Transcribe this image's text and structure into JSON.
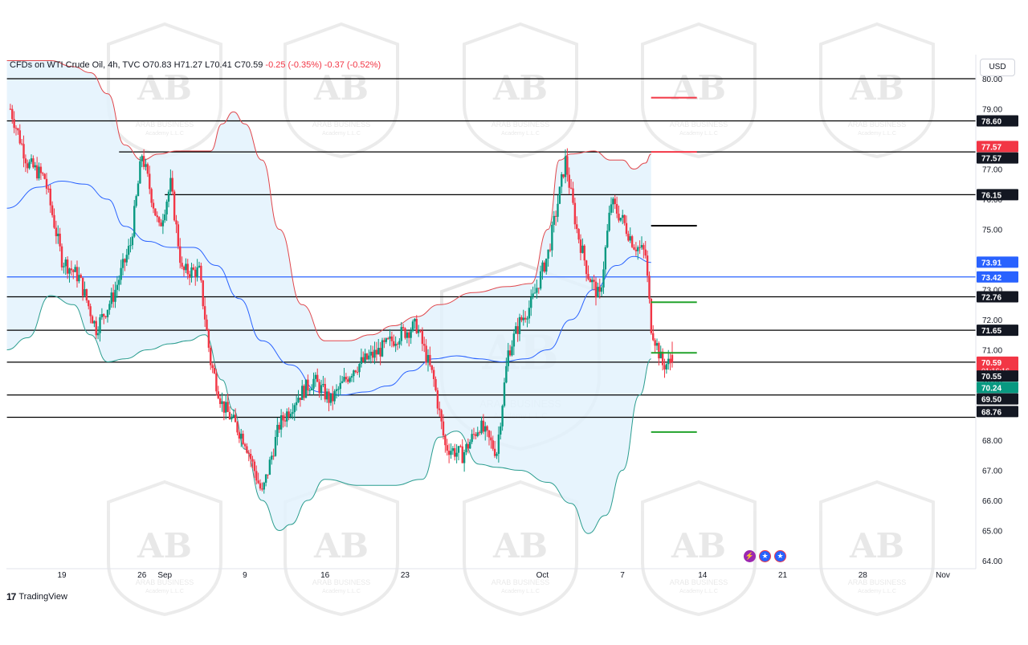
{
  "legend": {
    "symbol": "CFDs on WTI Crude Oil, 4h, TVC",
    "open": "O70.83",
    "high": "H71.27",
    "low": "L70.41",
    "close": "C70.59",
    "change": "-0.25 (-0.35%)",
    "change2": "-0.37 (-0.52%)"
  },
  "currency_button": "USD",
  "branding": {
    "logo": "17",
    "name": "TradingView"
  },
  "watermark": {
    "text": "ARAB BUSINESS",
    "sub": "Academy L.L.C",
    "monogram": "AB"
  },
  "events": [
    {
      "icon": "flash-icon",
      "glyph": "⚡"
    },
    {
      "icon": "us-flag-icon",
      "glyph": "★"
    },
    {
      "icon": "us-flag-icon",
      "glyph": "★"
    }
  ],
  "colors": {
    "up": "#089981",
    "down": "#f23645",
    "bb_upper": "#e0474c",
    "bb_lower": "#2a9d8f",
    "bb_basis": "#2962ff",
    "bb_fill": "#e3f2fd",
    "level_line": "#000000",
    "tag_red": "#f23645",
    "tag_blue": "#2962ff",
    "tag_dark": "#131722",
    "tag_green": "#089981"
  },
  "chart_data": {
    "type": "candlestick",
    "instrument": "CFDs on WTI Crude Oil",
    "timeframe": "4h",
    "ylim": [
      63.7,
      80.4
    ],
    "y_ticks": [
      "80.00",
      "79.00",
      "77.00",
      "76.00",
      "75.00",
      "74.00",
      "73.00",
      "72.00",
      "71.00",
      "70.00",
      "68.00",
      "67.00",
      "66.00",
      "65.00",
      "64.00"
    ],
    "x_range_days": [
      -17.8,
      21.5
    ],
    "x_ticks": [
      {
        "d": -13,
        "label": "19"
      },
      {
        "d": -6,
        "label": "26"
      },
      {
        "d": -4,
        "label": "Sep"
      },
      {
        "d": 3,
        "label": "9"
      },
      {
        "d": 10,
        "label": "16"
      },
      {
        "d": 17,
        "label": "23"
      },
      {
        "d": 29,
        "label": "Oct"
      },
      {
        "d": 36,
        "label": "7"
      },
      {
        "d": 43,
        "label": "14"
      },
      {
        "d": 50,
        "label": "21"
      },
      {
        "d": 57,
        "label": "28"
      },
      {
        "d": 64,
        "label": "Nov"
      }
    ],
    "key_points": [
      {
        "d": -17.5,
        "p": 79.0
      },
      {
        "d": -16.0,
        "p": 77.2
      },
      {
        "d": -14.5,
        "p": 76.7
      },
      {
        "d": -13.0,
        "p": 74.0
      },
      {
        "d": -11.5,
        "p": 73.4
      },
      {
        "d": -10.0,
        "p": 71.7
      },
      {
        "d": -8.5,
        "p": 72.8
      },
      {
        "d": -7.0,
        "p": 74.5
      },
      {
        "d": -6.0,
        "p": 77.5
      },
      {
        "d": -4.5,
        "p": 75.0
      },
      {
        "d": -3.5,
        "p": 76.5
      },
      {
        "d": -2.5,
        "p": 73.6
      },
      {
        "d": -1.0,
        "p": 73.6
      },
      {
        "d": 0.0,
        "p": 70.6
      },
      {
        "d": 1.0,
        "p": 69.2
      },
      {
        "d": 2.0,
        "p": 68.6
      },
      {
        "d": 3.0,
        "p": 68.0
      },
      {
        "d": 4.5,
        "p": 66.2
      },
      {
        "d": 6.0,
        "p": 68.5
      },
      {
        "d": 7.5,
        "p": 69.4
      },
      {
        "d": 9.0,
        "p": 70.0
      },
      {
        "d": 10.5,
        "p": 69.3
      },
      {
        "d": 12.5,
        "p": 70.4
      },
      {
        "d": 14.5,
        "p": 70.9
      },
      {
        "d": 16.5,
        "p": 71.5
      },
      {
        "d": 18.0,
        "p": 71.8
      },
      {
        "d": 19.5,
        "p": 70.0
      },
      {
        "d": 20.5,
        "p": 67.8
      },
      {
        "d": 22.0,
        "p": 67.5
      },
      {
        "d": 23.5,
        "p": 68.5
      },
      {
        "d": 25.0,
        "p": 67.6
      },
      {
        "d": 26.0,
        "p": 70.9
      },
      {
        "d": 27.0,
        "p": 71.9
      },
      {
        "d": 28.0,
        "p": 72.5
      },
      {
        "d": 29.5,
        "p": 74.2
      },
      {
        "d": 30.5,
        "p": 76.2
      },
      {
        "d": 31.0,
        "p": 77.3
      },
      {
        "d": 32.0,
        "p": 75.0
      },
      {
        "d": 33.0,
        "p": 73.5
      },
      {
        "d": 34.0,
        "p": 72.7
      },
      {
        "d": 35.0,
        "p": 75.9
      },
      {
        "d": 36.0,
        "p": 75.3
      },
      {
        "d": 37.0,
        "p": 74.5
      },
      {
        "d": 38.0,
        "p": 74.2
      },
      {
        "d": 38.5,
        "p": 71.8
      },
      {
        "d": 39.5,
        "p": 70.5
      },
      {
        "d": 40.5,
        "p": 70.6
      }
    ],
    "last_candle": {
      "open": 70.83,
      "high": 71.27,
      "low": 70.41,
      "close": 70.59
    },
    "bollinger": {
      "upper": [
        [
          -17.8,
          80.6
        ],
        [
          -14.0,
          80.6
        ],
        [
          -12.0,
          80.4
        ],
        [
          -10.5,
          80.2
        ],
        [
          -9.0,
          79.5
        ],
        [
          -7.5,
          77.8
        ],
        [
          -6.0,
          77.3
        ],
        [
          -4.5,
          77.5
        ],
        [
          -3.0,
          77.6
        ],
        [
          -1.5,
          77.6
        ],
        [
          0.0,
          77.6
        ],
        [
          1.0,
          78.5
        ],
        [
          2.0,
          78.9
        ],
        [
          3.0,
          78.5
        ],
        [
          4.5,
          77.3
        ],
        [
          6.0,
          75.0
        ],
        [
          8.0,
          72.5
        ],
        [
          10.0,
          71.3
        ],
        [
          12.0,
          71.3
        ],
        [
          14.0,
          71.5
        ],
        [
          16.0,
          71.8
        ],
        [
          18.0,
          72.1
        ],
        [
          20.0,
          72.5
        ],
        [
          23.0,
          72.9
        ],
        [
          26.0,
          73.1
        ],
        [
          28.0,
          73.2
        ],
        [
          29.5,
          75.0
        ],
        [
          30.5,
          77.3
        ],
        [
          31.5,
          77.5
        ],
        [
          33.5,
          77.6
        ],
        [
          35.0,
          77.3
        ],
        [
          36.0,
          77.3
        ],
        [
          37.0,
          77.0
        ],
        [
          38.0,
          77.2
        ],
        [
          38.5,
          77.5
        ]
      ],
      "basis": [
        [
          -17.8,
          75.7
        ],
        [
          -15.0,
          76.4
        ],
        [
          -13.0,
          76.6
        ],
        [
          -11.0,
          76.5
        ],
        [
          -9.0,
          76.0
        ],
        [
          -7.5,
          75.1
        ],
        [
          -5.5,
          74.6
        ],
        [
          -3.5,
          74.4
        ],
        [
          -1.5,
          74.4
        ],
        [
          0.5,
          73.8
        ],
        [
          2.5,
          72.7
        ],
        [
          4.5,
          71.3
        ],
        [
          7.0,
          70.5
        ],
        [
          9.5,
          69.6
        ],
        [
          11.5,
          69.5
        ],
        [
          13.5,
          69.6
        ],
        [
          15.5,
          69.8
        ],
        [
          17.5,
          70.3
        ],
        [
          19.5,
          70.7
        ],
        [
          21.5,
          70.8
        ],
        [
          23.5,
          70.7
        ],
        [
          25.5,
          70.6
        ],
        [
          27.5,
          70.7
        ],
        [
          29.5,
          71.0
        ],
        [
          31.5,
          72.0
        ],
        [
          33.5,
          73.0
        ],
        [
          35.5,
          73.8
        ],
        [
          37.0,
          74.1
        ],
        [
          38.5,
          73.9
        ]
      ],
      "lower": [
        [
          -17.8,
          71.0
        ],
        [
          -16.0,
          71.4
        ],
        [
          -14.0,
          72.8
        ],
        [
          -12.0,
          72.5
        ],
        [
          -10.5,
          71.5
        ],
        [
          -9.0,
          70.6
        ],
        [
          -7.5,
          70.7
        ],
        [
          -5.5,
          71.0
        ],
        [
          -3.5,
          71.2
        ],
        [
          -2.0,
          71.3
        ],
        [
          -0.5,
          71.5
        ],
        [
          1.0,
          70.0
        ],
        [
          2.0,
          69.0
        ],
        [
          3.0,
          67.7
        ],
        [
          4.5,
          66.0
        ],
        [
          6.0,
          65.0
        ],
        [
          7.0,
          65.2
        ],
        [
          8.5,
          66.0
        ],
        [
          10.0,
          66.7
        ],
        [
          13.0,
          66.5
        ],
        [
          16.0,
          66.5
        ],
        [
          18.5,
          66.7
        ],
        [
          20.0,
          68.1
        ],
        [
          21.5,
          68.3
        ],
        [
          23.5,
          67.2
        ],
        [
          25.0,
          67.1
        ],
        [
          27.0,
          67.0
        ],
        [
          29.5,
          66.6
        ],
        [
          31.5,
          65.9
        ],
        [
          33.0,
          64.9
        ],
        [
          34.5,
          65.5
        ],
        [
          36.0,
          67.0
        ],
        [
          37.5,
          69.5
        ],
        [
          38.5,
          70.7
        ]
      ]
    },
    "horizontal_levels": [
      {
        "price": 80.0,
        "from_d": -17.8,
        "label": null
      },
      {
        "price": 78.6,
        "from_d": -17.8,
        "label": "78.60"
      },
      {
        "price": 77.57,
        "from_d": -8.0,
        "label": "77.57"
      },
      {
        "price": 76.15,
        "from_d": -4.0,
        "label": "76.15"
      },
      {
        "price": 73.42,
        "from_d": -17.8,
        "label": "73.42",
        "color": "blue"
      },
      {
        "price": 72.76,
        "from_d": -17.8,
        "label": "72.76"
      },
      {
        "price": 71.65,
        "from_d": -17.8,
        "label": "71.65"
      },
      {
        "price": 70.59,
        "from_d": -17.8,
        "label": "70.59"
      },
      {
        "price": 69.5,
        "from_d": -17.8,
        "label": "69.50"
      },
      {
        "price": 68.76,
        "from_d": -17.8,
        "label": "68.76"
      }
    ],
    "target_lines": [
      {
        "price": 79.37,
        "color": "red"
      },
      {
        "price": 77.57,
        "color": "red"
      },
      {
        "price": 75.12,
        "color": "black"
      },
      {
        "price": 72.58,
        "color": "green"
      },
      {
        "price": 70.9,
        "color": "green"
      },
      {
        "price": 68.27,
        "color": "green"
      }
    ],
    "target_lines_d_range": [
      38.5,
      42.5
    ],
    "price_tags": [
      {
        "text": "78.60",
        "price": 78.6,
        "style": "dark"
      },
      {
        "text": "77.57",
        "price": 77.75,
        "style": "red"
      },
      {
        "text": "77.57",
        "price": 77.37,
        "style": "dark"
      },
      {
        "text": "76.15",
        "price": 76.15,
        "style": "dark"
      },
      {
        "text": "73.91",
        "price": 73.91,
        "style": "blue"
      },
      {
        "text": "73.42",
        "price": 73.42,
        "style": "blue"
      },
      {
        "text": "72.76",
        "price": 72.76,
        "style": "dark"
      },
      {
        "text": "71.65",
        "price": 71.65,
        "style": "dark"
      },
      {
        "text": "70.59",
        "price": 70.59,
        "style": "red",
        "sub": "01:16:16"
      },
      {
        "text": "70.55",
        "price": 70.13,
        "style": "dark"
      },
      {
        "text": "70.24",
        "price": 69.75,
        "style": "green"
      },
      {
        "text": "69.50",
        "price": 69.37,
        "style": "dark"
      },
      {
        "text": "68.76",
        "price": 68.95,
        "style": "dark"
      }
    ]
  }
}
